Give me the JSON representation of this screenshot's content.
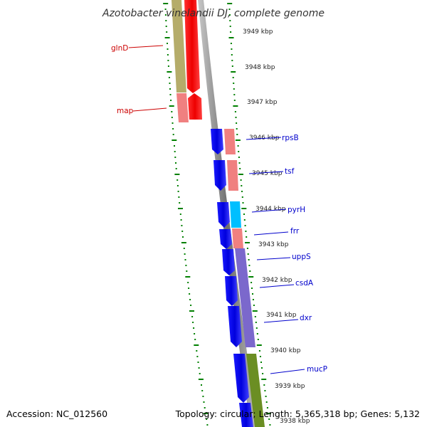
{
  "title": "Azotobacter vinelandii DJ, complete genome",
  "footer": {
    "accession": "Accession: NC_012560",
    "summary": "Topology: circular; Length: 5,365,318 bp; Genes: 5,132"
  },
  "kbp_labels": [
    "3949 kbp",
    "3948 kbp",
    "3947 kbp",
    "3946 kbp",
    "3945 kbp",
    "3944 kbp",
    "3943 kbp",
    "3942 kbp",
    "3941 kbp",
    "3940 kbp",
    "3939 kbp",
    "3938 kbp"
  ],
  "genes": [
    {
      "label": "glnD",
      "strand": "reverse",
      "cog_color": "#ff0000",
      "label_color": "#cc0000"
    },
    {
      "label": "map",
      "strand": "reverse",
      "cog_color": "#f08080",
      "label_color": "#cc0000"
    },
    {
      "label": "rpsB",
      "strand": "forward",
      "cog_color": "#f08080",
      "label_color": "#0000cc"
    },
    {
      "label": "tsf",
      "strand": "forward",
      "cog_color": "#f08080",
      "label_color": "#0000cc"
    },
    {
      "label": "pyrH",
      "strand": "forward",
      "cog_color": "#00bfff",
      "label_color": "#0000cc"
    },
    {
      "label": "frr",
      "strand": "forward",
      "cog_color": "#f08080",
      "label_color": "#0000cc"
    },
    {
      "label": "uppS",
      "strand": "forward",
      "cog_color": "#7b68cc",
      "label_color": "#0000cc"
    },
    {
      "label": "csdA",
      "strand": "forward",
      "cog_color": "#7b68cc",
      "label_color": "#0000cc"
    },
    {
      "label": "dxr",
      "strand": "forward",
      "cog_color": "#7b68cc",
      "label_color": "#0000cc"
    },
    {
      "label": "mucP",
      "strand": "forward",
      "cog_color": "#6b8e23",
      "label_color": "#0000cc"
    }
  ],
  "colors": {
    "backbone": "#808080",
    "forward_strand": "#0000ee",
    "reverse_strand": "#ff0000",
    "ticks": "#008000",
    "cog_first": "#b5ac6a"
  }
}
